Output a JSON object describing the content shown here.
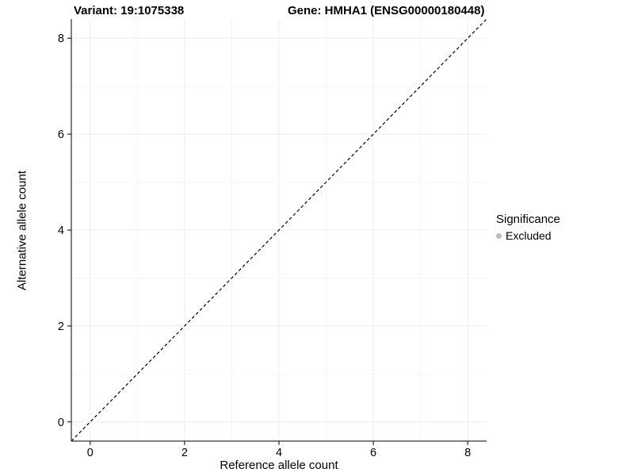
{
  "titles": {
    "variant": "Variant: 19:1075338",
    "gene": "Gene: HMHA1 (ENSG00000180448)"
  },
  "chart_data": {
    "type": "scatter",
    "title_left": "Variant: 19:1075338",
    "title_right": "Gene: HMHA1 (ENSG00000180448)",
    "xlabel": "Reference allele count",
    "ylabel": "Alternative allele count",
    "xlim": [
      -0.4,
      8.4
    ],
    "ylim": [
      -0.4,
      8.4
    ],
    "xticks": [
      0,
      2,
      4,
      6,
      8
    ],
    "yticks": [
      0,
      2,
      4,
      6,
      8
    ],
    "minor_xticks": [
      1,
      3,
      5,
      7
    ],
    "minor_yticks": [
      1,
      3,
      5,
      7
    ],
    "points": [],
    "identity_line": {
      "style": "dashed",
      "from": [
        -0.4,
        -0.4
      ],
      "to": [
        8.4,
        8.4
      ],
      "color": "#000000"
    },
    "grid": true,
    "colors": {
      "major_grid": "#ededed",
      "minor_grid": "#f6f6f6",
      "axis": "#000000",
      "excluded_marker": "#bdbdbd"
    },
    "legend": {
      "title": "Significance",
      "position": "right",
      "entries": [
        {
          "label": "Excluded",
          "color": "#bdbdbd",
          "marker": "circle"
        }
      ]
    }
  }
}
